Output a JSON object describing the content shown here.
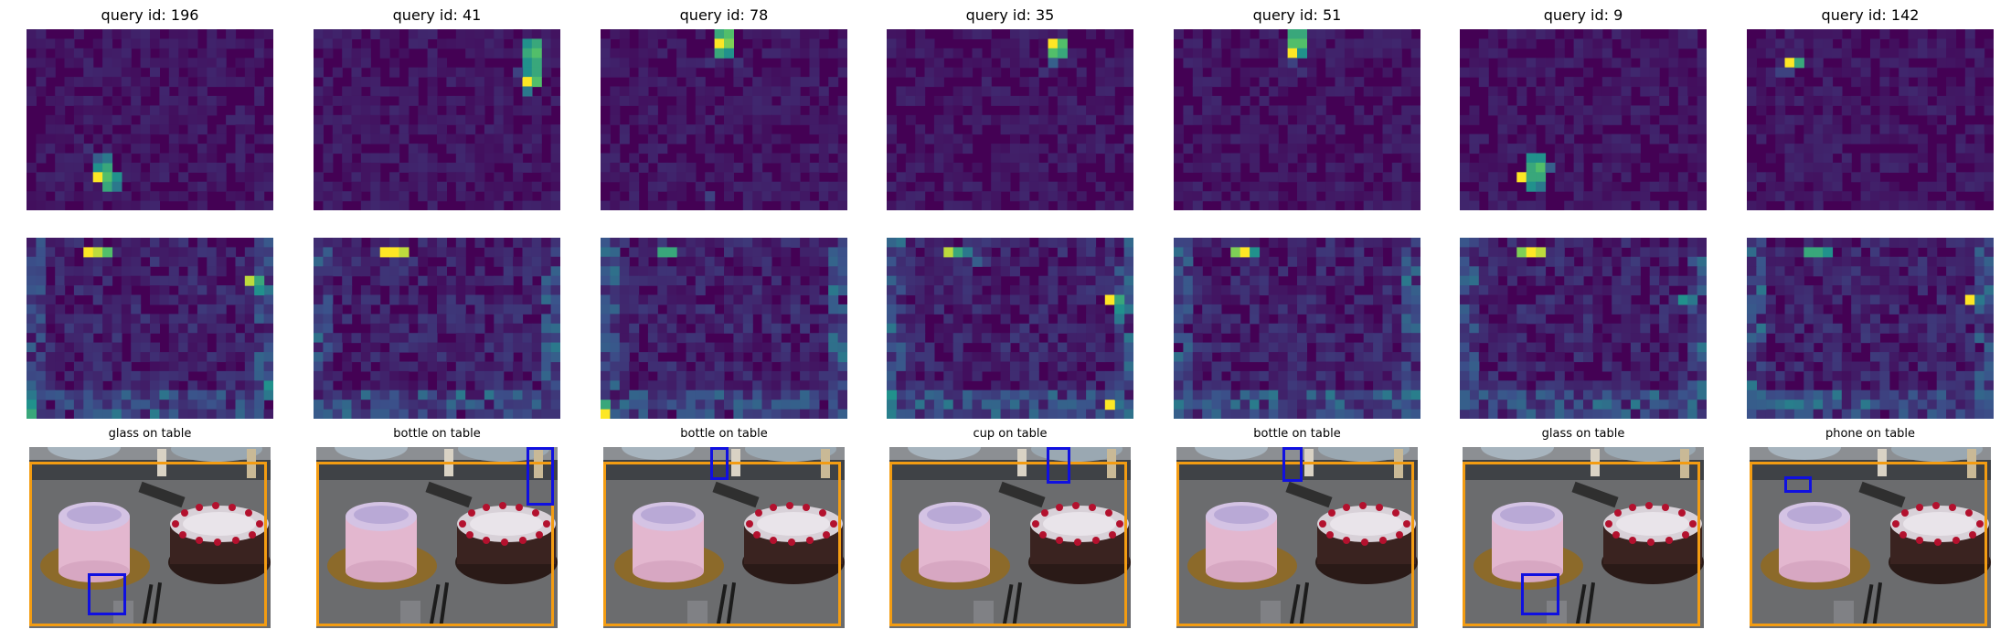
{
  "panels": [
    {
      "title": "query id: 196",
      "label": "glass on table"
    },
    {
      "title": "query id: 41",
      "label": "bottle on table"
    },
    {
      "title": "query id: 78",
      "label": "bottle on table"
    },
    {
      "title": "query id: 35",
      "label": "cup on table"
    },
    {
      "title": "query id: 51",
      "label": "bottle on table"
    },
    {
      "title": "query id: 9",
      "label": "glass on table"
    },
    {
      "title": "query id: 142",
      "label": "phone on table"
    }
  ],
  "colors": {
    "heatmap_low": "#440154",
    "heatmap_mid": "#31688e",
    "heatmap_high": "#fde725",
    "subject_box": "#f39c12",
    "object_box": "#1010e0"
  }
}
